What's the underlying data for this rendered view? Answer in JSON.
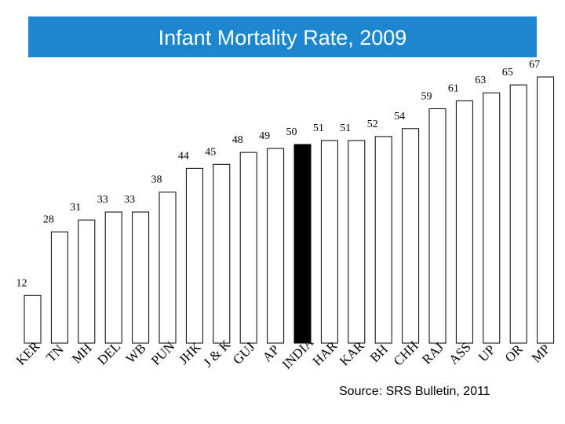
{
  "title": "Infant Mortality Rate, 2009",
  "source": "Source: SRS Bulletin, 2011",
  "colors": {
    "title_band": "#1c87cf",
    "title_text": "#ffffff",
    "bar_fill": "#ffffff",
    "bar_stroke": "#000000",
    "highlight_fill": "#000000"
  },
  "chart_data": {
    "type": "bar",
    "title": "Infant Mortality Rate, 2009",
    "xlabel": "",
    "ylabel": "",
    "ylim": [
      0,
      67
    ],
    "grid": false,
    "legend": "none",
    "highlight": "INDIA",
    "categories": [
      "KER",
      "TN",
      "MH",
      "DEL",
      "WB",
      "PUN",
      "JHK",
      "J & K",
      "GUJ",
      "AP",
      "INDIA",
      "HAR",
      "KAR",
      "BH",
      "CHH",
      "RAJ",
      "ASS",
      "UP",
      "OR",
      "MP"
    ],
    "values": [
      12,
      28,
      31,
      33,
      33,
      38,
      44,
      45,
      48,
      49,
      50,
      51,
      51,
      52,
      54,
      59,
      61,
      63,
      65,
      67
    ]
  }
}
